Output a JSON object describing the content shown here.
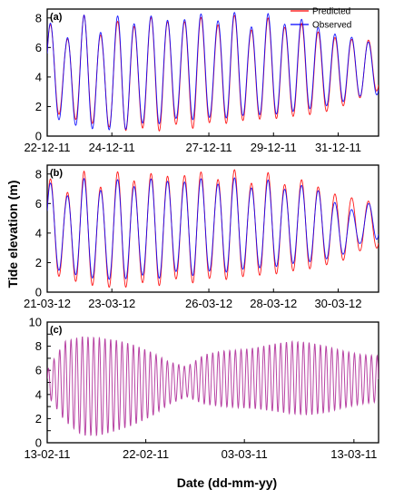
{
  "figure": {
    "ylabel": "Tide elevation (m)",
    "xlabel": "Date (dd-mm-yy)",
    "colors": {
      "predicted": "#ff0000",
      "observed": "#0000ff",
      "overlap": "#b0309a"
    }
  },
  "chart_data": [
    {
      "type": "line",
      "panel_label": "(a)",
      "x_ticks": [
        "22-12-11",
        "24-12-11",
        "27-12-11",
        "29-12-11",
        "31-12-11"
      ],
      "x_range": [
        "2011-12-22",
        "2012-01-01T06:00"
      ],
      "ylim": [
        0,
        8.6
      ],
      "y_ticks": [
        0,
        2,
        4,
        6,
        8
      ],
      "grid": false,
      "legend": {
        "placement": "top-right",
        "entries": [
          "Predicted",
          "Observed"
        ]
      },
      "series": [
        {
          "name": "Predicted",
          "color": "#ff0000",
          "high_tides_m": [
            7.8,
            6.4,
            8.2,
            6.7,
            8.0,
            7.2,
            8.5,
            7.1,
            8.5,
            7.2,
            8.4,
            7.1,
            8.0,
            7.3,
            7.7,
            6.8,
            6.6,
            6.5,
            6.5
          ],
          "low_tides_m": [
            1.6,
            1.4,
            0.9,
            0.8,
            0.3,
            0.6,
            0.3,
            0.8,
            0.5,
            1.0,
            0.8,
            1.2,
            1.1,
            1.3,
            1.4,
            1.6,
            2.0,
            2.6,
            3.1
          ]
        },
        {
          "name": "Observed",
          "color": "#0000ff",
          "high_tides_m": [
            7.9,
            6.5,
            8.2,
            6.9,
            8.4,
            7.3,
            8.6,
            7.2,
            8.7,
            7.5,
            8.6,
            7.3,
            8.3,
            7.5,
            8.0,
            7.1,
            6.8,
            6.6,
            6.1
          ],
          "low_tides_m": [
            1.3,
            1.0,
            0.5,
            0.5,
            0.3,
            0.9,
            0.8,
            1.2,
            1.1,
            1.3,
            1.2,
            1.5,
            1.4,
            1.6,
            1.8,
            2.0,
            2.3,
            2.7,
            2.8
          ]
        }
      ]
    },
    {
      "type": "line",
      "panel_label": "(b)",
      "x_ticks": [
        "21-03-12",
        "23-03-12",
        "26-03-12",
        "28-03-12",
        "30-03-12"
      ],
      "x_range": [
        "2012-03-21",
        "2012-03-31T06:00"
      ],
      "ylim": [
        0,
        8.6
      ],
      "y_ticks": [
        0,
        2,
        4,
        6,
        8
      ],
      "grid": false,
      "series": [
        {
          "name": "Predicted",
          "color": "#ff0000",
          "high_tides_m": [
            7.9,
            6.6,
            8.2,
            7.0,
            8.4,
            7.2,
            8.5,
            7.3,
            8.6,
            7.3,
            8.5,
            7.3,
            8.1,
            7.2,
            7.7,
            6.9,
            6.5,
            6.3,
            6.0
          ],
          "low_tides_m": [
            1.2,
            1.0,
            0.5,
            0.4,
            0.2,
            0.7,
            0.4,
            0.9,
            0.6,
            1.0,
            0.8,
            1.2,
            1.1,
            1.4,
            1.5,
            1.8,
            2.1,
            2.8,
            3.0
          ]
        },
        {
          "name": "Observed",
          "color": "#0000ff",
          "high_tides_m": [
            7.6,
            6.4,
            7.7,
            6.8,
            7.8,
            6.9,
            8.1,
            7.0,
            8.0,
            7.1,
            7.9,
            7.0,
            7.6,
            6.9,
            7.3,
            6.7,
            5.7,
            5.5,
            6.6
          ],
          "low_tides_m": [
            1.6,
            1.4,
            1.0,
            0.9,
            0.8,
            1.2,
            0.9,
            1.4,
            1.1,
            1.5,
            1.3,
            1.7,
            1.6,
            1.9,
            2.0,
            2.2,
            2.5,
            3.3,
            3.6
          ]
        }
      ]
    },
    {
      "type": "line",
      "panel_label": "(c)",
      "x_ticks": [
        "13-02-11",
        "22-02-11",
        "03-03-11",
        "13-03-11"
      ],
      "x_range": [
        "2011-02-13",
        "2011-03-15T06:00"
      ],
      "ylim": [
        0,
        10
      ],
      "y_ticks": [
        0,
        1,
        2,
        3,
        4,
        5,
        6,
        7,
        8,
        9,
        10
      ],
      "y_tick_labels": [
        "0",
        "",
        "2",
        "",
        "4",
        "",
        "6",
        "",
        "8",
        "",
        "10"
      ],
      "grid": false,
      "series": [
        {
          "name": "Predicted",
          "color": "#ff0000",
          "high_tides_m": [
            6.0,
            8.4,
            8.8,
            8.7,
            8.5,
            8.1,
            7.5,
            6.7,
            6.3,
            7.3,
            7.6,
            7.7,
            7.9,
            8.2,
            8.4,
            8.3,
            8.0,
            7.6,
            7.3,
            7.2
          ],
          "low_tides_m": [
            4.0,
            1.8,
            0.6,
            0.6,
            1.0,
            1.5,
            2.2,
            3.2,
            3.8,
            3.2,
            3.0,
            2.9,
            2.8,
            2.6,
            2.4,
            2.3,
            2.5,
            2.9,
            3.2,
            3.4
          ]
        }
      ]
    }
  ]
}
